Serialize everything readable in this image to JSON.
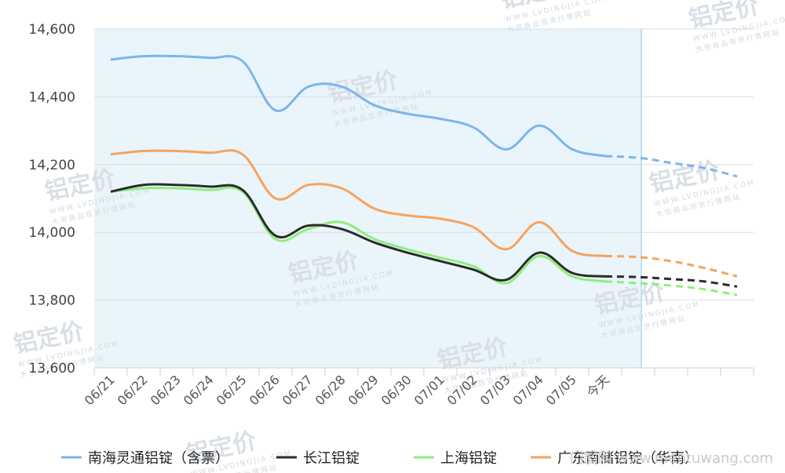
{
  "chart_data": {
    "type": "line",
    "title": "",
    "xlabel": "",
    "ylabel": "",
    "categories": [
      "06/21",
      "06/22",
      "06/23",
      "06/24",
      "06/25",
      "06/26",
      "06/27",
      "06/28",
      "06/29",
      "06/30",
      "07/01",
      "07/02",
      "07/03",
      "07/04",
      "07/05",
      "今天",
      "",
      "",
      "",
      ""
    ],
    "ylim": [
      13600,
      14600
    ],
    "yticks": [
      "13,600",
      "13,800",
      "14,000",
      "14,200",
      "14,400",
      "14,600"
    ],
    "grid": true,
    "legend_position": "bottom",
    "history_end_index": 15,
    "series": [
      {
        "name": "南海灵通铝锭（含票）",
        "color": "#7cb5ec",
        "values": [
          14510,
          14520,
          14520,
          14515,
          14505,
          14360,
          14430,
          14430,
          14375,
          14350,
          14335,
          14310,
          14245,
          14315,
          14245,
          14225,
          14220,
          14205,
          14190,
          14165
        ]
      },
      {
        "name": "长江铝锭",
        "color": "#2b2b2b",
        "values": [
          14120,
          14140,
          14140,
          14135,
          14125,
          13990,
          14020,
          14010,
          13970,
          13940,
          13915,
          13890,
          13860,
          13940,
          13880,
          13870,
          13868,
          13862,
          13855,
          13840
        ]
      },
      {
        "name": "上海铝锭",
        "color": "#90ed7d",
        "values": [
          14120,
          14130,
          14130,
          14125,
          14120,
          13980,
          14010,
          14030,
          13980,
          13950,
          13925,
          13900,
          13850,
          13930,
          13870,
          13855,
          13850,
          13843,
          13832,
          13815
        ]
      },
      {
        "name": "广东南储铝锭（华南）",
        "color": "#f7a35c",
        "values": [
          14230,
          14240,
          14240,
          14235,
          14230,
          14100,
          14140,
          14130,
          14070,
          14050,
          14040,
          14015,
          13950,
          14030,
          13945,
          13930,
          13927,
          13915,
          13895,
          13870
        ]
      }
    ]
  },
  "watermark": {
    "brand": "铝定价",
    "url": "WWW.LVDINGJIA.COM",
    "slogan": "大宗商品现货行情网站"
  },
  "credit": "门图网 www.mentuwang.com"
}
